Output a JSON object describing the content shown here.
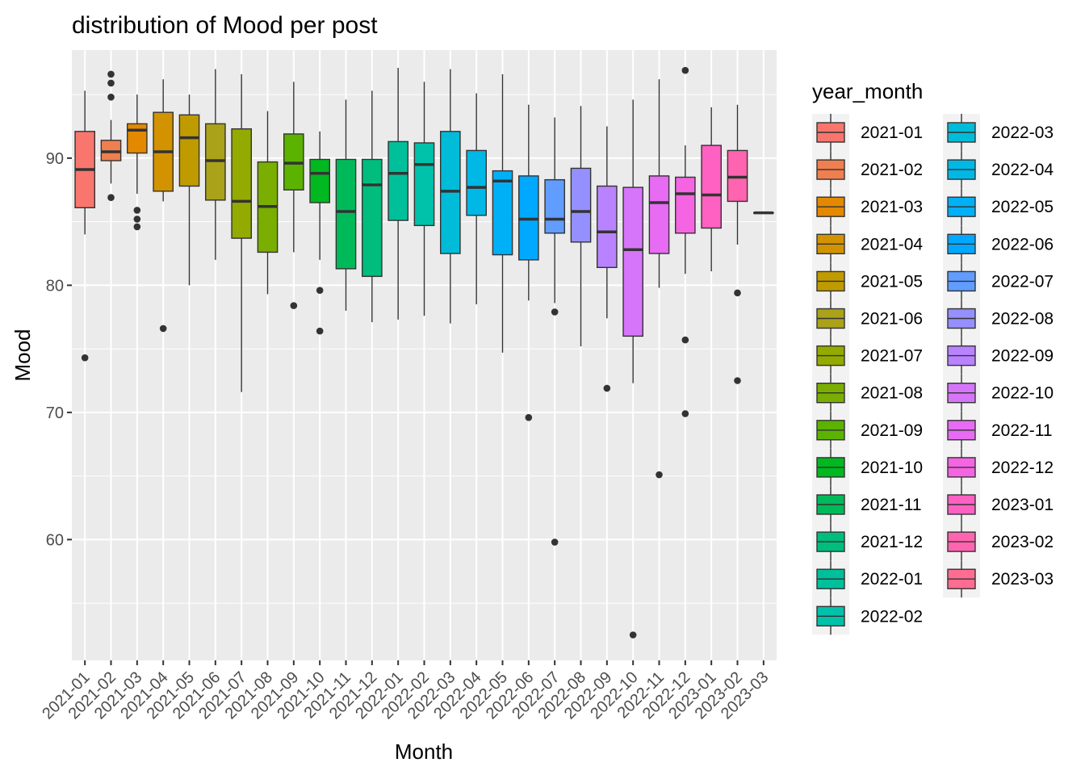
{
  "chart_data": {
    "type": "boxplot",
    "title": "distribution of Mood per post",
    "xlabel": "Month",
    "ylabel": "Mood",
    "ylim": [
      50.5,
      98.5
    ],
    "yticks": [
      60,
      70,
      80,
      90
    ],
    "grid": true,
    "legend": {
      "title": "year_month",
      "position": "right",
      "columns": 2
    },
    "categories": [
      "2021-01",
      "2021-02",
      "2021-03",
      "2021-04",
      "2021-05",
      "2021-06",
      "2021-07",
      "2021-08",
      "2021-09",
      "2021-10",
      "2021-11",
      "2021-12",
      "2022-01",
      "2022-02",
      "2022-03",
      "2022-04",
      "2022-05",
      "2022-06",
      "2022-07",
      "2022-08",
      "2022-09",
      "2022-10",
      "2022-11",
      "2022-12",
      "2023-01",
      "2023-02",
      "2023-03"
    ],
    "colors": [
      "#F8766D",
      "#F07F4F",
      "#E38900",
      "#D39200",
      "#C09B00",
      "#AAA219",
      "#93AA00",
      "#7AAE00",
      "#5BB300",
      "#00B81F",
      "#00BA5A",
      "#00BD7E",
      "#00C09B",
      "#00C1AA",
      "#00BCD8",
      "#00B8E5",
      "#00B0F6",
      "#00A9FF",
      "#619CFF",
      "#9590FF",
      "#B983FF",
      "#D675F9",
      "#E76BF3",
      "#F564E3",
      "#FF61C3",
      "#FF64B0",
      "#FF6C91"
    ],
    "boxes": [
      {
        "month": "2021-01",
        "whisker_low": 84.0,
        "q1": 86.1,
        "median": 89.1,
        "q3": 92.1,
        "whisker_high": 95.3,
        "outliers": [
          74.3
        ]
      },
      {
        "month": "2021-02",
        "whisker_low": 88.0,
        "q1": 89.8,
        "median": 90.5,
        "q3": 91.4,
        "whisker_high": 93.0,
        "outliers": [
          96.6,
          95.9,
          94.8,
          86.9
        ]
      },
      {
        "month": "2021-03",
        "whisker_low": 87.2,
        "q1": 90.4,
        "median": 92.2,
        "q3": 92.7,
        "whisker_high": 95.0,
        "outliers": [
          85.9,
          85.2,
          84.6
        ]
      },
      {
        "month": "2021-04",
        "whisker_low": 86.6,
        "q1": 87.4,
        "median": 90.5,
        "q3": 93.6,
        "whisker_high": 96.2,
        "outliers": [
          76.6
        ]
      },
      {
        "month": "2021-05",
        "whisker_low": 80.0,
        "q1": 87.8,
        "median": 91.6,
        "q3": 93.4,
        "whisker_high": 95.0,
        "outliers": []
      },
      {
        "month": "2021-06",
        "whisker_low": 82.0,
        "q1": 86.7,
        "median": 89.8,
        "q3": 92.7,
        "whisker_high": 97.0,
        "outliers": []
      },
      {
        "month": "2021-07",
        "whisker_low": 71.6,
        "q1": 83.7,
        "median": 86.6,
        "q3": 92.3,
        "whisker_high": 96.6,
        "outliers": []
      },
      {
        "month": "2021-08",
        "whisker_low": 79.3,
        "q1": 82.6,
        "median": 86.2,
        "q3": 89.7,
        "whisker_high": 93.7,
        "outliers": []
      },
      {
        "month": "2021-09",
        "whisker_low": 82.6,
        "q1": 87.5,
        "median": 89.6,
        "q3": 91.9,
        "whisker_high": 96.0,
        "outliers": [
          78.4
        ]
      },
      {
        "month": "2021-10",
        "whisker_low": 82.0,
        "q1": 86.5,
        "median": 88.8,
        "q3": 89.9,
        "whisker_high": 92.1,
        "outliers": [
          79.6,
          76.4
        ]
      },
      {
        "month": "2021-11",
        "whisker_low": 78.0,
        "q1": 81.3,
        "median": 85.8,
        "q3": 89.9,
        "whisker_high": 94.6,
        "outliers": []
      },
      {
        "month": "2021-12",
        "whisker_low": 77.1,
        "q1": 80.7,
        "median": 87.9,
        "q3": 89.9,
        "whisker_high": 95.3,
        "outliers": []
      },
      {
        "month": "2022-01",
        "whisker_low": 77.3,
        "q1": 85.1,
        "median": 88.8,
        "q3": 91.3,
        "whisker_high": 97.1,
        "outliers": []
      },
      {
        "month": "2022-02",
        "whisker_low": 77.6,
        "q1": 84.7,
        "median": 89.5,
        "q3": 91.2,
        "whisker_high": 96.0,
        "outliers": []
      },
      {
        "month": "2022-03",
        "whisker_low": 77.0,
        "q1": 82.5,
        "median": 87.4,
        "q3": 92.1,
        "whisker_high": 97.0,
        "outliers": []
      },
      {
        "month": "2022-04",
        "whisker_low": 78.5,
        "q1": 85.5,
        "median": 87.7,
        "q3": 90.6,
        "whisker_high": 95.1,
        "outliers": []
      },
      {
        "month": "2022-05",
        "whisker_low": 74.7,
        "q1": 82.4,
        "median": 88.2,
        "q3": 89.0,
        "whisker_high": 96.6,
        "outliers": []
      },
      {
        "month": "2022-06",
        "whisker_low": 78.8,
        "q1": 82.0,
        "median": 85.2,
        "q3": 88.6,
        "whisker_high": 94.2,
        "outliers": [
          69.6
        ]
      },
      {
        "month": "2022-07",
        "whisker_low": 78.6,
        "q1": 84.1,
        "median": 85.2,
        "q3": 88.3,
        "whisker_high": 93.2,
        "outliers": [
          77.9,
          59.8
        ]
      },
      {
        "month": "2022-08",
        "whisker_low": 75.2,
        "q1": 83.4,
        "median": 85.8,
        "q3": 89.2,
        "whisker_high": 94.1,
        "outliers": []
      },
      {
        "month": "2022-09",
        "whisker_low": 77.4,
        "q1": 81.4,
        "median": 84.2,
        "q3": 87.8,
        "whisker_high": 92.5,
        "outliers": [
          71.9
        ]
      },
      {
        "month": "2022-10",
        "whisker_low": 72.3,
        "q1": 76.0,
        "median": 82.8,
        "q3": 87.7,
        "whisker_high": 94.6,
        "outliers": [
          52.5
        ]
      },
      {
        "month": "2022-11",
        "whisker_low": 79.8,
        "q1": 82.5,
        "median": 86.5,
        "q3": 88.6,
        "whisker_high": 96.2,
        "outliers": [
          65.1
        ]
      },
      {
        "month": "2022-12",
        "whisker_low": 80.9,
        "q1": 84.1,
        "median": 87.2,
        "q3": 88.5,
        "whisker_high": 91.0,
        "outliers": [
          96.9,
          75.7,
          69.9
        ]
      },
      {
        "month": "2023-01",
        "whisker_low": 81.1,
        "q1": 84.5,
        "median": 87.1,
        "q3": 91.0,
        "whisker_high": 94.0,
        "outliers": []
      },
      {
        "month": "2023-02",
        "whisker_low": 83.2,
        "q1": 86.6,
        "median": 88.5,
        "q3": 90.6,
        "whisker_high": 94.2,
        "outliers": [
          79.4,
          72.5
        ]
      },
      {
        "month": "2023-03",
        "whisker_low": 85.7,
        "q1": 85.7,
        "median": 85.7,
        "q3": 85.7,
        "whisker_high": 85.7,
        "outliers": []
      }
    ]
  }
}
